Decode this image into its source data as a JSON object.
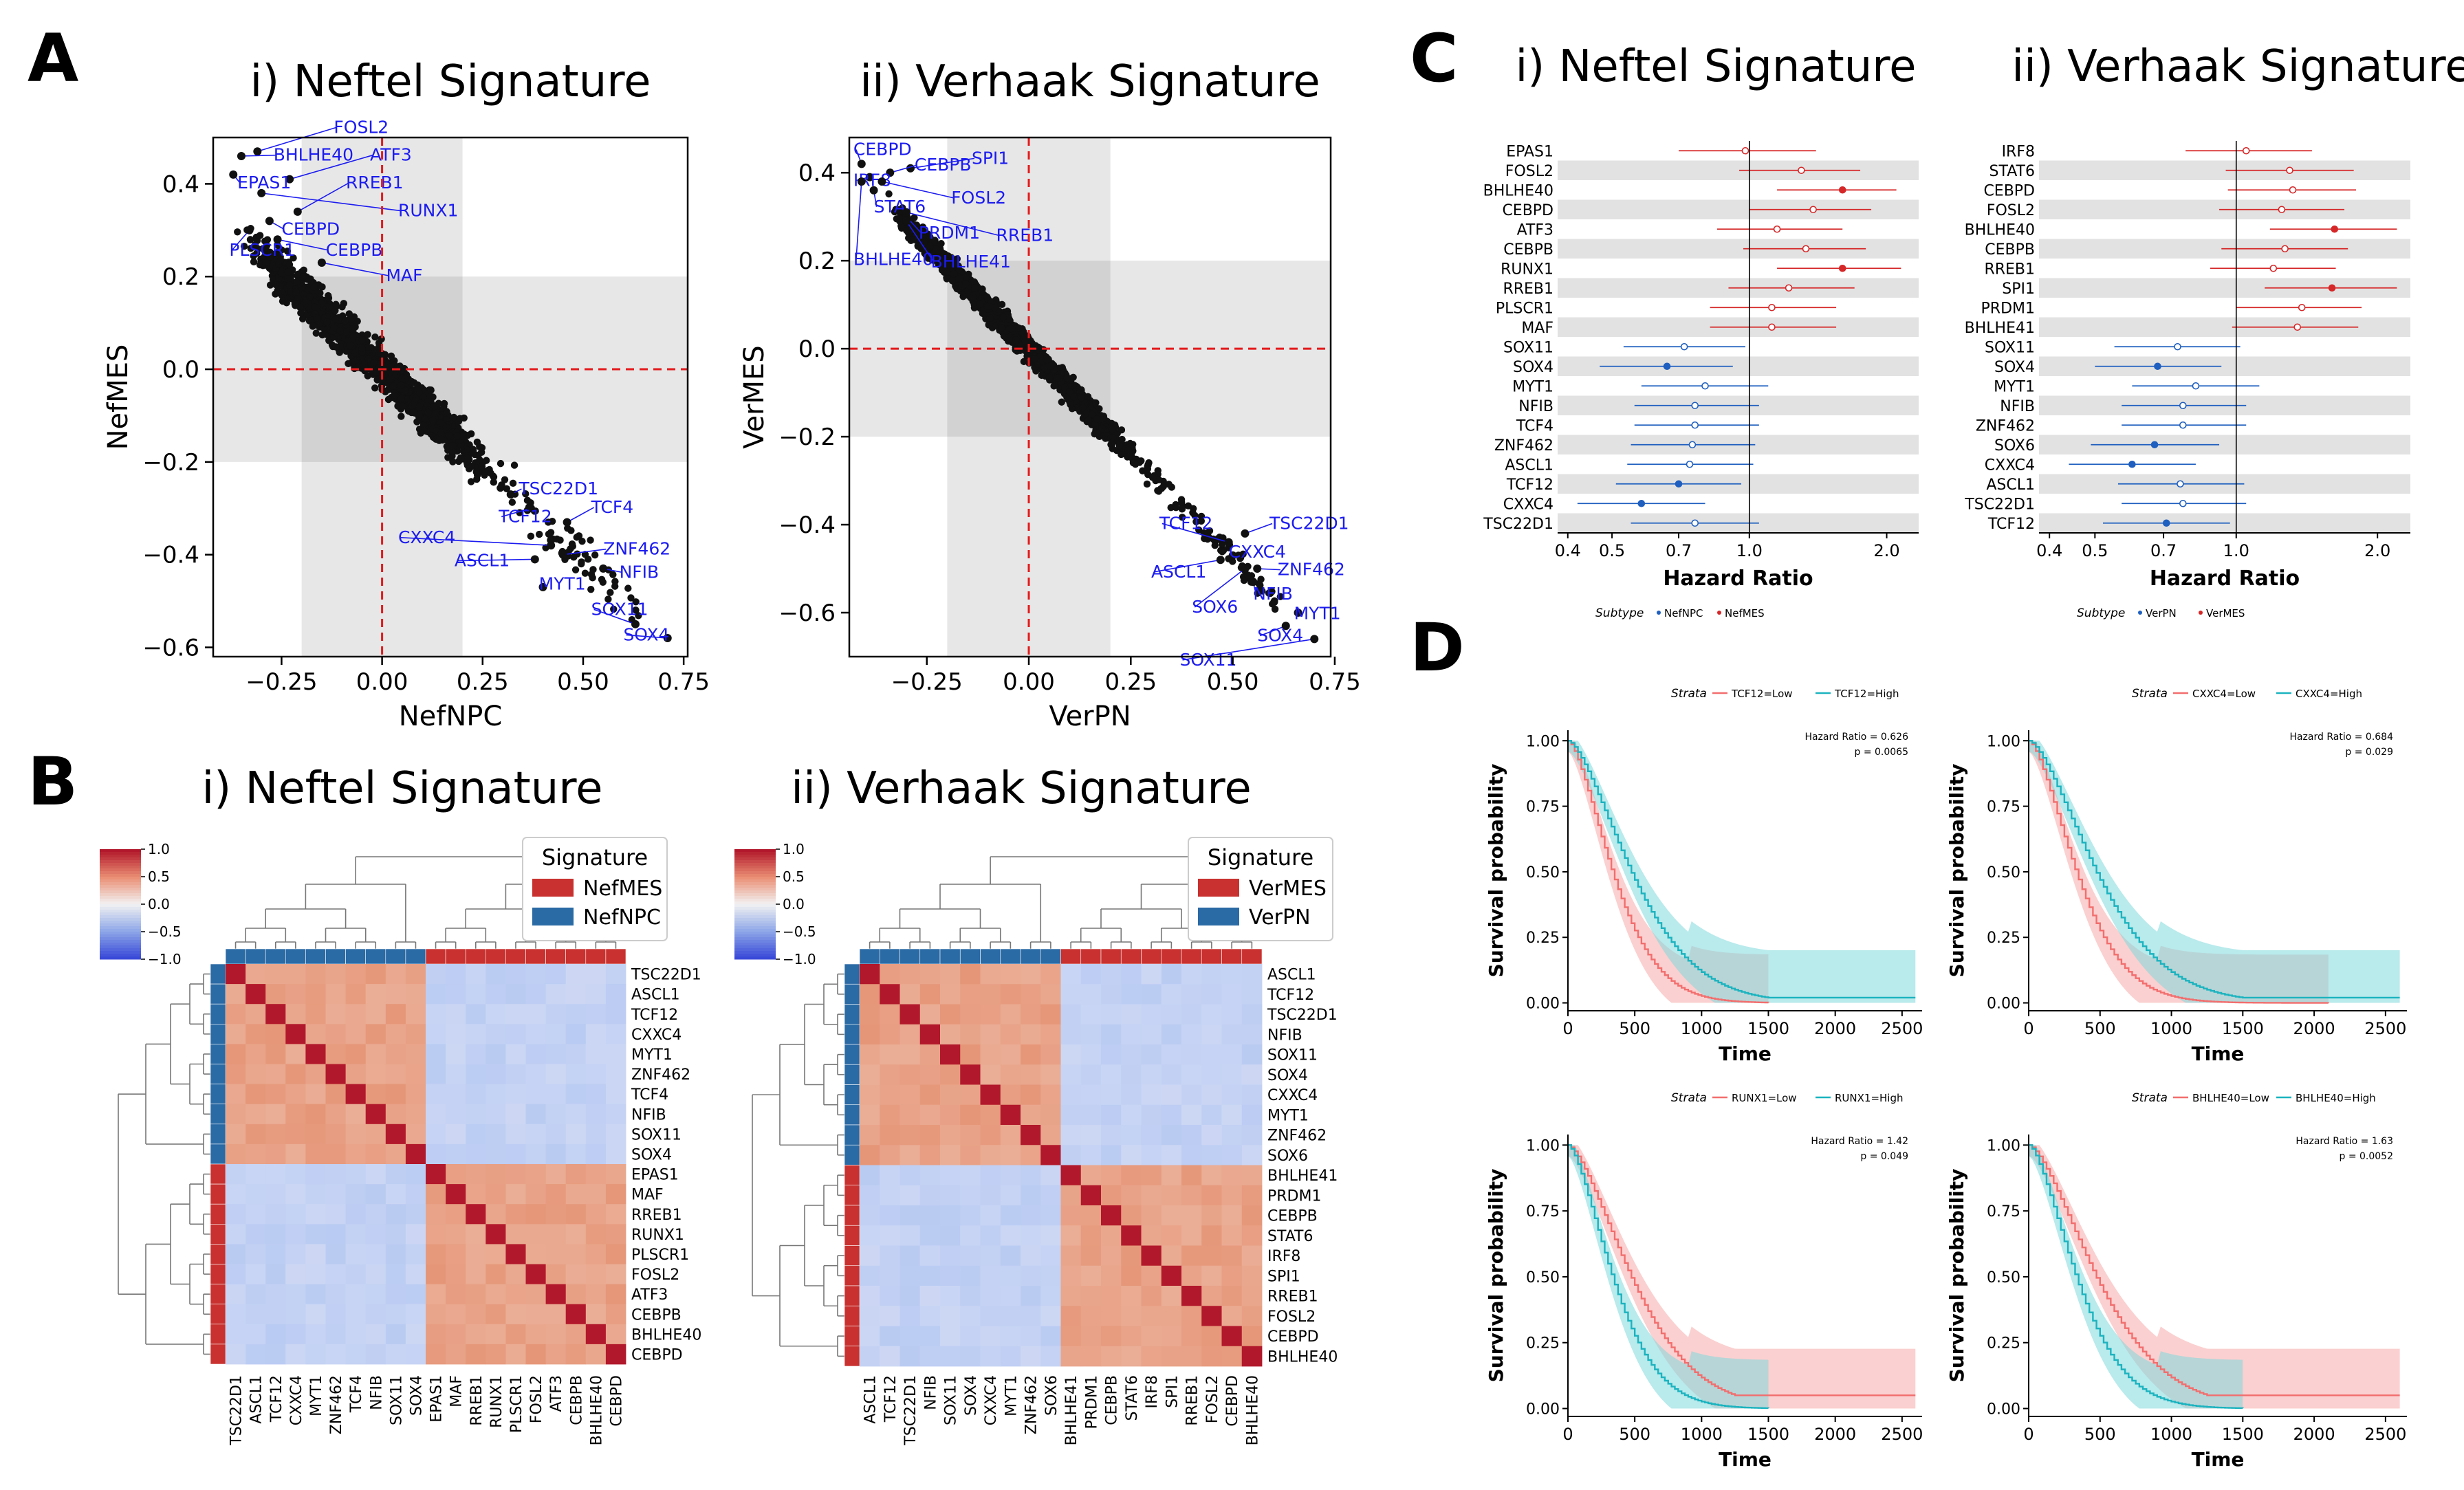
{
  "panels": {
    "A": "A",
    "B": "B",
    "C": "C",
    "D": "D"
  },
  "colors": {
    "pc": "#1f5fbf",
    "mc": "#d62728",
    "pcHeat": "#2a6aa5",
    "mcHeat": "#c8312f",
    "redDash": "#e41a1c",
    "label": "#1c1cf0",
    "kmLow": "#f26e6e",
    "kmHigh": "#1bb3bf",
    "kmLowFill": "#f7a9a9",
    "kmHighFill": "#7fd8dc",
    "band": "#e6e6e6"
  },
  "chart_data": [
    {
      "id": "A1",
      "type": "scatter",
      "title": "i) Neftel Signature",
      "xlabel": "NefNPC",
      "ylabel": "NefMES",
      "xlim": [
        -0.42,
        0.76
      ],
      "ylim": [
        -0.62,
        0.5
      ],
      "xticks": [
        -0.25,
        0.0,
        0.25,
        0.5,
        0.75
      ],
      "xticklabels": [
        "−0.25",
        "0.00",
        "0.25",
        "0.50",
        "0.75"
      ],
      "yticks": [
        -0.6,
        -0.4,
        -0.2,
        0.0,
        0.2,
        0.4
      ],
      "yticklabels": [
        "−0.6",
        "−0.4",
        "−0.2",
        "0.0",
        "0.2",
        "0.4"
      ],
      "labeled": [
        {
          "t": "FOSL2",
          "x": -0.31,
          "y": 0.47,
          "lx": -0.12,
          "ly": 0.51
        },
        {
          "t": "ATF3",
          "x": -0.23,
          "y": 0.41,
          "lx": -0.03,
          "ly": 0.45
        },
        {
          "t": "BHLHE40",
          "x": -0.35,
          "y": 0.46,
          "lx": -0.27,
          "ly": 0.45
        },
        {
          "t": "RREB1",
          "x": -0.21,
          "y": 0.34,
          "lx": -0.09,
          "ly": 0.39
        },
        {
          "t": "EPAS1",
          "x": -0.37,
          "y": 0.42,
          "lx": -0.36,
          "ly": 0.39
        },
        {
          "t": "RUNX1",
          "x": -0.3,
          "y": 0.38,
          "lx": 0.04,
          "ly": 0.33
        },
        {
          "t": "CEBPD",
          "x": -0.28,
          "y": 0.32,
          "lx": -0.25,
          "ly": 0.29
        },
        {
          "t": "PLSCR1",
          "x": -0.33,
          "y": 0.3,
          "lx": -0.38,
          "ly": 0.245
        },
        {
          "t": "CEBPB",
          "x": -0.26,
          "y": 0.28,
          "lx": -0.14,
          "ly": 0.245
        },
        {
          "t": "MAF",
          "x": -0.15,
          "y": 0.23,
          "lx": 0.01,
          "ly": 0.19
        },
        {
          "t": "TSC22D1",
          "x": 0.32,
          "y": -0.27,
          "lx": 0.34,
          "ly": -0.27
        },
        {
          "t": "TCF12",
          "x": 0.37,
          "y": -0.3,
          "lx": 0.29,
          "ly": -0.33
        },
        {
          "t": "TCF4",
          "x": 0.46,
          "y": -0.33,
          "lx": 0.52,
          "ly": -0.31
        },
        {
          "t": "CXXC4",
          "x": 0.42,
          "y": -0.38,
          "lx": 0.04,
          "ly": -0.375
        },
        {
          "t": "ZNF462",
          "x": 0.45,
          "y": -0.4,
          "lx": 0.55,
          "ly": -0.4
        },
        {
          "t": "ASCL1",
          "x": 0.38,
          "y": -0.41,
          "lx": 0.18,
          "ly": -0.425
        },
        {
          "t": "NFIB",
          "x": 0.55,
          "y": -0.43,
          "lx": 0.59,
          "ly": -0.45
        },
        {
          "t": "MYT1",
          "x": 0.4,
          "y": -0.47,
          "lx": 0.39,
          "ly": -0.475
        },
        {
          "t": "SOX11",
          "x": 0.63,
          "y": -0.55,
          "lx": 0.52,
          "ly": -0.53
        },
        {
          "t": "SOX4",
          "x": 0.71,
          "y": -0.58,
          "lx": 0.6,
          "ly": -0.585
        }
      ]
    },
    {
      "id": "A2",
      "type": "scatter",
      "title": "ii) Verhaak Signature",
      "xlabel": "VerPN",
      "ylabel": "VerMES",
      "xlim": [
        -0.44,
        0.74
      ],
      "ylim": [
        -0.7,
        0.48
      ],
      "xticks": [
        -0.25,
        0.0,
        0.25,
        0.5,
        0.75
      ],
      "xticklabels": [
        "−0.25",
        "0.00",
        "0.25",
        "0.50",
        "0.75"
      ],
      "yticks": [
        -0.6,
        -0.4,
        -0.2,
        0.0,
        0.2,
        0.4
      ],
      "yticklabels": [
        "−0.6",
        "−0.4",
        "−0.2",
        "0.0",
        "0.2",
        "0.4"
      ],
      "labeled": [
        {
          "t": "CEBPD",
          "x": -0.41,
          "y": 0.42,
          "lx": -0.43,
          "ly": 0.44
        },
        {
          "t": "SPI1",
          "x": -0.29,
          "y": 0.41,
          "lx": -0.14,
          "ly": 0.42
        },
        {
          "t": "CEBPB",
          "x": -0.34,
          "y": 0.4,
          "lx": -0.28,
          "ly": 0.405
        },
        {
          "t": "IRF8",
          "x": -0.39,
          "y": 0.39,
          "lx": -0.43,
          "ly": 0.37
        },
        {
          "t": "STAT6",
          "x": -0.38,
          "y": 0.36,
          "lx": -0.38,
          "ly": 0.31
        },
        {
          "t": "FOSL2",
          "x": -0.36,
          "y": 0.38,
          "lx": -0.19,
          "ly": 0.33
        },
        {
          "t": "PRDM1",
          "x": -0.3,
          "y": 0.3,
          "lx": -0.27,
          "ly": 0.25
        },
        {
          "t": "RREB1",
          "x": -0.3,
          "y": 0.31,
          "lx": -0.08,
          "ly": 0.245
        },
        {
          "t": "BHLHE40",
          "x": -0.41,
          "y": 0.38,
          "lx": -0.43,
          "ly": 0.19
        },
        {
          "t": "BHLHE41",
          "x": -0.3,
          "y": 0.29,
          "lx": -0.24,
          "ly": 0.185
        },
        {
          "t": "TCF12",
          "x": 0.49,
          "y": -0.44,
          "lx": 0.32,
          "ly": -0.41
        },
        {
          "t": "TSC22D1",
          "x": 0.53,
          "y": -0.42,
          "lx": 0.59,
          "ly": -0.41
        },
        {
          "t": "CXXC4",
          "x": 0.5,
          "y": -0.47,
          "lx": 0.49,
          "ly": -0.475
        },
        {
          "t": "ASCL1",
          "x": 0.47,
          "y": -0.48,
          "lx": 0.3,
          "ly": -0.52
        },
        {
          "t": "ZNF462",
          "x": 0.56,
          "y": -0.5,
          "lx": 0.61,
          "ly": -0.515
        },
        {
          "t": "NFIB",
          "x": 0.55,
          "y": -0.53,
          "lx": 0.55,
          "ly": -0.57
        },
        {
          "t": "SOX6",
          "x": 0.53,
          "y": -0.5,
          "lx": 0.4,
          "ly": -0.6
        },
        {
          "t": "MYT1",
          "x": 0.66,
          "y": -0.6,
          "lx": 0.65,
          "ly": -0.615
        },
        {
          "t": "SOX4",
          "x": 0.63,
          "y": -0.63,
          "lx": 0.56,
          "ly": -0.665
        },
        {
          "t": "SOX11",
          "x": 0.7,
          "y": -0.66,
          "lx": 0.37,
          "ly": -0.72
        }
      ]
    },
    {
      "id": "B1",
      "type": "heatmap",
      "title": "i) Neftel Signature",
      "legend_title": "Signature",
      "legend": [
        "NefMES",
        "NefNPC"
      ],
      "colorbar_ticks": [
        "1.0",
        "0.5",
        "0.0",
        "−0.5",
        "−1.0"
      ],
      "genes": [
        "TSC22D1",
        "ASCL1",
        "TCF12",
        "CXXC4",
        "MYT1",
        "ZNF462",
        "TCF4",
        "NFIB",
        "SOX11",
        "SOX4",
        "EPAS1",
        "MAF",
        "RREB1",
        "RUNX1",
        "PLSCR1",
        "FOSL2",
        "ATF3",
        "CEBPB",
        "BHLHE40",
        "CEBPD"
      ],
      "n_npc": 10
    },
    {
      "id": "B2",
      "type": "heatmap",
      "title": "ii) Verhaak Signature",
      "legend_title": "Signature",
      "legend": [
        "VerMES",
        "VerPN"
      ],
      "colorbar_ticks": [
        "1.0",
        "0.5",
        "0.0",
        "−0.5",
        "−1.0"
      ],
      "genes": [
        "ASCL1",
        "TCF12",
        "TSC22D1",
        "NFIB",
        "SOX11",
        "SOX4",
        "CXXC4",
        "MYT1",
        "ZNF462",
        "SOX6",
        "BHLHE41",
        "PRDM1",
        "CEBPB",
        "STAT6",
        "IRF8",
        "SPI1",
        "RREB1",
        "FOSL2",
        "CEBPD",
        "BHLHE40"
      ],
      "n_npc": 10
    },
    {
      "id": "C1",
      "type": "forest",
      "title": "i) Neftel Signature",
      "xlabel": "Hazard Ratio",
      "xticks": [
        0.4,
        0.5,
        0.7,
        1.0,
        2.0
      ],
      "xticklabels": [
        "0.4",
        "0.5",
        "0.7",
        "1.0",
        "2.0"
      ],
      "legend_title": "Subtype",
      "legend": [
        "NefNPC",
        "NefMES"
      ],
      "rows": [
        {
          "g": "EPAS1",
          "hr": 0.98,
          "lo": 0.7,
          "hi": 1.4,
          "t": "m",
          "sig": false
        },
        {
          "g": "FOSL2",
          "hr": 1.3,
          "lo": 0.95,
          "hi": 1.75,
          "t": "m",
          "sig": false
        },
        {
          "g": "BHLHE40",
          "hi": 2.1,
          "hr": 1.6,
          "lo": 1.15,
          "t": "m",
          "sig": true
        },
        {
          "g": "CEBPD",
          "hr": 1.38,
          "lo": 1.0,
          "hi": 1.85,
          "t": "m",
          "sig": false
        },
        {
          "g": "ATF3",
          "hr": 1.15,
          "lo": 0.85,
          "hi": 1.6,
          "t": "m",
          "sig": false
        },
        {
          "g": "CEBPB",
          "hr": 1.33,
          "lo": 0.97,
          "hi": 1.8,
          "t": "m",
          "sig": false
        },
        {
          "g": "RUNX1",
          "hr": 1.6,
          "lo": 1.15,
          "hi": 2.15,
          "t": "m",
          "sig": true
        },
        {
          "g": "RREB1",
          "hr": 1.22,
          "lo": 0.9,
          "hi": 1.7,
          "t": "m",
          "sig": false
        },
        {
          "g": "PLSCR1",
          "hr": 1.12,
          "lo": 0.82,
          "hi": 1.55,
          "t": "m",
          "sig": false
        },
        {
          "g": "MAF",
          "hr": 1.12,
          "lo": 0.82,
          "hi": 1.55,
          "t": "m",
          "sig": false
        },
        {
          "g": "SOX11",
          "hr": 0.72,
          "lo": 0.53,
          "hi": 0.98,
          "t": "p",
          "sig": false
        },
        {
          "g": "SOX4",
          "hr": 0.66,
          "lo": 0.47,
          "hi": 0.92,
          "t": "p",
          "sig": true
        },
        {
          "g": "MYT1",
          "hr": 0.8,
          "lo": 0.58,
          "hi": 1.1,
          "t": "p",
          "sig": false
        },
        {
          "g": "NFIB",
          "hr": 0.76,
          "lo": 0.56,
          "hi": 1.05,
          "t": "p",
          "sig": false
        },
        {
          "g": "TCF4",
          "hr": 0.76,
          "lo": 0.56,
          "hi": 1.05,
          "t": "p",
          "sig": false
        },
        {
          "g": "ZNF462",
          "hr": 0.75,
          "lo": 0.55,
          "hi": 1.03,
          "t": "p",
          "sig": false
        },
        {
          "g": "ASCL1",
          "hr": 0.74,
          "lo": 0.54,
          "hi": 1.02,
          "t": "p",
          "sig": false
        },
        {
          "g": "TCF12",
          "hr": 0.7,
          "lo": 0.51,
          "hi": 0.96,
          "t": "p",
          "sig": true
        },
        {
          "g": "CXXC4",
          "hr": 0.58,
          "lo": 0.42,
          "hi": 0.8,
          "t": "p",
          "sig": true
        },
        {
          "g": "TSC22D1",
          "hr": 0.76,
          "lo": 0.55,
          "hi": 1.05,
          "t": "p",
          "sig": false
        }
      ]
    },
    {
      "id": "C2",
      "type": "forest",
      "title": "ii) Verhaak Signature",
      "xlabel": "Hazard Ratio",
      "xticks": [
        0.4,
        0.5,
        0.7,
        1.0,
        2.0
      ],
      "xticklabels": [
        "0.4",
        "0.5",
        "0.7",
        "1.0",
        "2.0"
      ],
      "legend_title": "Subtype",
      "legend": [
        "VerPN",
        "VerMES"
      ],
      "rows": [
        {
          "g": "IRF8",
          "hr": 1.05,
          "lo": 0.78,
          "hi": 1.45,
          "t": "m",
          "sig": false
        },
        {
          "g": "STAT6",
          "hr": 1.3,
          "lo": 0.95,
          "hi": 1.78,
          "t": "m",
          "sig": false
        },
        {
          "g": "CEBPD",
          "hr": 1.32,
          "lo": 0.96,
          "hi": 1.8,
          "t": "m",
          "sig": false
        },
        {
          "g": "FOSL2",
          "hr": 1.25,
          "lo": 0.92,
          "hi": 1.7,
          "t": "m",
          "sig": false
        },
        {
          "g": "BHLHE40",
          "hr": 1.62,
          "lo": 1.18,
          "hi": 2.2,
          "t": "m",
          "sig": true
        },
        {
          "g": "CEBPB",
          "hr": 1.27,
          "lo": 0.93,
          "hi": 1.73,
          "t": "m",
          "sig": false
        },
        {
          "g": "RREB1",
          "hr": 1.2,
          "lo": 0.88,
          "hi": 1.63,
          "t": "m",
          "sig": false
        },
        {
          "g": "SPI1",
          "hr": 1.6,
          "lo": 1.15,
          "hi": 2.2,
          "t": "m",
          "sig": true
        },
        {
          "g": "PRDM1",
          "hr": 1.38,
          "lo": 1.0,
          "hi": 1.85,
          "t": "m",
          "sig": false
        },
        {
          "g": "BHLHE41",
          "hr": 1.35,
          "lo": 0.98,
          "hi": 1.82,
          "t": "m",
          "sig": false
        },
        {
          "g": "SOX11",
          "hr": 0.75,
          "lo": 0.55,
          "hi": 1.02,
          "t": "p",
          "sig": false
        },
        {
          "g": "SOX4",
          "hr": 0.68,
          "lo": 0.5,
          "hi": 0.93,
          "t": "p",
          "sig": true
        },
        {
          "g": "MYT1",
          "hr": 0.82,
          "lo": 0.6,
          "hi": 1.12,
          "t": "p",
          "sig": false
        },
        {
          "g": "NFIB",
          "hr": 0.77,
          "lo": 0.57,
          "hi": 1.05,
          "t": "p",
          "sig": false
        },
        {
          "g": "ZNF462",
          "hr": 0.77,
          "lo": 0.57,
          "hi": 1.05,
          "t": "p",
          "sig": false
        },
        {
          "g": "SOX6",
          "hr": 0.67,
          "lo": 0.49,
          "hi": 0.92,
          "t": "p",
          "sig": true
        },
        {
          "g": "CXXC4",
          "hr": 0.6,
          "lo": 0.44,
          "hi": 0.82,
          "t": "p",
          "sig": true
        },
        {
          "g": "ASCL1",
          "hr": 0.76,
          "lo": 0.56,
          "hi": 1.04,
          "t": "p",
          "sig": false
        },
        {
          "g": "TSC22D1",
          "hr": 0.77,
          "lo": 0.57,
          "hi": 1.05,
          "t": "p",
          "sig": false
        },
        {
          "g": "TCF12",
          "hr": 0.71,
          "lo": 0.52,
          "hi": 0.97,
          "t": "p",
          "sig": true
        }
      ]
    },
    {
      "id": "D1",
      "type": "line",
      "strata": "Strata",
      "legend": [
        "TCF12=Low",
        "TCF12=High"
      ],
      "xlabel": "Time",
      "ylabel": "Survival probability",
      "xticks": [
        0,
        500,
        1000,
        1500,
        2000,
        2500
      ],
      "yticks": [
        "0.00",
        "0.25",
        "0.50",
        "0.75",
        "1.00"
      ],
      "hr_text": "Hazard Ratio = 0.626",
      "p_text": "p = 0.0065",
      "low_end": 1500,
      "high_end": 2600,
      "high_plateau": 0.02,
      "high_better": true
    },
    {
      "id": "D2",
      "type": "line",
      "strata": "Strata",
      "legend": [
        "CXXC4=Low",
        "CXXC4=High"
      ],
      "xlabel": "Time",
      "ylabel": "Survival probability",
      "xticks": [
        0,
        500,
        1000,
        1500,
        2000,
        2500
      ],
      "yticks": [
        "0.00",
        "0.25",
        "0.50",
        "0.75",
        "1.00"
      ],
      "hr_text": "Hazard Ratio = 0.684",
      "p_text": "p = 0.029",
      "low_end": 2100,
      "high_end": 2600,
      "high_plateau": 0.02,
      "high_better": true
    },
    {
      "id": "D3",
      "type": "line",
      "strata": "Strata",
      "legend": [
        "RUNX1=Low",
        "RUNX1=High"
      ],
      "xlabel": "Time",
      "ylabel": "Survival probability",
      "xticks": [
        0,
        500,
        1000,
        1500,
        2000,
        2500
      ],
      "yticks": [
        "0.00",
        "0.25",
        "0.50",
        "0.75",
        "1.00"
      ],
      "hr_text": "Hazard Ratio = 1.42",
      "p_text": "p = 0.049",
      "low_end": 2600,
      "high_end": 1500,
      "high_plateau": 0.0,
      "high_better": false
    },
    {
      "id": "D4",
      "type": "line",
      "strata": "Strata",
      "legend": [
        "BHLHE40=Low",
        "BHLHE40=High"
      ],
      "xlabel": "Time",
      "ylabel": "Survival probability",
      "xticks": [
        0,
        500,
        1000,
        1500,
        2000,
        2500
      ],
      "yticks": [
        "0.00",
        "0.25",
        "0.50",
        "0.75",
        "1.00"
      ],
      "hr_text": "Hazard Ratio = 1.63",
      "p_text": "p = 0.0052",
      "low_end": 2600,
      "high_end": 1500,
      "high_plateau": 0.0,
      "high_better": false
    }
  ]
}
